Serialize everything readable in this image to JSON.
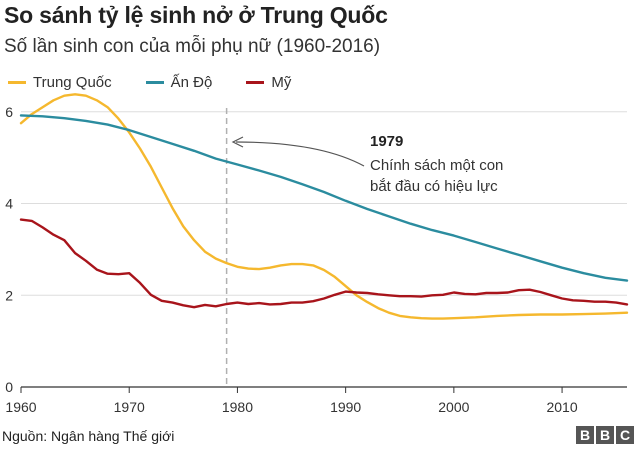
{
  "chart_data": {
    "type": "line",
    "title": "So sánh tỷ lệ sinh nở ở Trung Quốc",
    "subtitle": "Số lần sinh con của mỗi phụ nữ (1960-2016)",
    "xlabel": "",
    "ylabel": "",
    "xlim": [
      1960,
      2016
    ],
    "ylim": [
      0,
      6.3
    ],
    "x_ticks": [
      1960,
      1970,
      1980,
      1990,
      2000,
      2010
    ],
    "y_ticks": [
      0,
      2,
      4,
      6
    ],
    "grid": true,
    "legend_position": "top-left",
    "series": [
      {
        "name": "Trung Quốc",
        "color": "#f5b82e",
        "points": [
          [
            1960,
            5.75
          ],
          [
            1961,
            5.95
          ],
          [
            1962,
            6.1
          ],
          [
            1963,
            6.25
          ],
          [
            1964,
            6.35
          ],
          [
            1965,
            6.38
          ],
          [
            1966,
            6.35
          ],
          [
            1967,
            6.25
          ],
          [
            1968,
            6.1
          ],
          [
            1969,
            5.85
          ],
          [
            1970,
            5.55
          ],
          [
            1971,
            5.2
          ],
          [
            1972,
            4.8
          ],
          [
            1973,
            4.35
          ],
          [
            1974,
            3.9
          ],
          [
            1975,
            3.5
          ],
          [
            1976,
            3.2
          ],
          [
            1977,
            2.95
          ],
          [
            1978,
            2.8
          ],
          [
            1979,
            2.7
          ],
          [
            1980,
            2.62
          ],
          [
            1981,
            2.58
          ],
          [
            1982,
            2.57
          ],
          [
            1983,
            2.6
          ],
          [
            1984,
            2.65
          ],
          [
            1985,
            2.68
          ],
          [
            1986,
            2.68
          ],
          [
            1987,
            2.65
          ],
          [
            1988,
            2.55
          ],
          [
            1989,
            2.4
          ],
          [
            1990,
            2.2
          ],
          [
            1991,
            2.0
          ],
          [
            1992,
            1.85
          ],
          [
            1993,
            1.72
          ],
          [
            1994,
            1.62
          ],
          [
            1995,
            1.55
          ],
          [
            1996,
            1.52
          ],
          [
            1997,
            1.5
          ],
          [
            1998,
            1.49
          ],
          [
            1999,
            1.49
          ],
          [
            2000,
            1.5
          ],
          [
            2002,
            1.52
          ],
          [
            2004,
            1.55
          ],
          [
            2006,
            1.57
          ],
          [
            2008,
            1.58
          ],
          [
            2010,
            1.58
          ],
          [
            2012,
            1.59
          ],
          [
            2014,
            1.6
          ],
          [
            2016,
            1.62
          ]
        ]
      },
      {
        "name": "Ấn Độ",
        "color": "#2b8c9f",
        "points": [
          [
            1960,
            5.92
          ],
          [
            1962,
            5.9
          ],
          [
            1964,
            5.86
          ],
          [
            1966,
            5.8
          ],
          [
            1968,
            5.72
          ],
          [
            1970,
            5.6
          ],
          [
            1972,
            5.45
          ],
          [
            1974,
            5.3
          ],
          [
            1976,
            5.15
          ],
          [
            1978,
            4.98
          ],
          [
            1980,
            4.85
          ],
          [
            1982,
            4.72
          ],
          [
            1984,
            4.58
          ],
          [
            1986,
            4.42
          ],
          [
            1988,
            4.25
          ],
          [
            1990,
            4.06
          ],
          [
            1992,
            3.88
          ],
          [
            1994,
            3.72
          ],
          [
            1996,
            3.56
          ],
          [
            1998,
            3.42
          ],
          [
            2000,
            3.3
          ],
          [
            2002,
            3.16
          ],
          [
            2004,
            3.02
          ],
          [
            2006,
            2.88
          ],
          [
            2008,
            2.74
          ],
          [
            2010,
            2.6
          ],
          [
            2012,
            2.48
          ],
          [
            2014,
            2.38
          ],
          [
            2016,
            2.32
          ]
        ]
      },
      {
        "name": "Mỹ",
        "color": "#a8141b",
        "points": [
          [
            1960,
            3.65
          ],
          [
            1961,
            3.62
          ],
          [
            1962,
            3.48
          ],
          [
            1963,
            3.32
          ],
          [
            1964,
            3.2
          ],
          [
            1965,
            2.92
          ],
          [
            1966,
            2.75
          ],
          [
            1967,
            2.56
          ],
          [
            1968,
            2.47
          ],
          [
            1969,
            2.46
          ],
          [
            1970,
            2.48
          ],
          [
            1971,
            2.27
          ],
          [
            1972,
            2.01
          ],
          [
            1973,
            1.88
          ],
          [
            1974,
            1.84
          ],
          [
            1975,
            1.78
          ],
          [
            1976,
            1.74
          ],
          [
            1977,
            1.79
          ],
          [
            1978,
            1.76
          ],
          [
            1979,
            1.81
          ],
          [
            1980,
            1.84
          ],
          [
            1981,
            1.81
          ],
          [
            1982,
            1.83
          ],
          [
            1983,
            1.8
          ],
          [
            1984,
            1.81
          ],
          [
            1985,
            1.84
          ],
          [
            1986,
            1.84
          ],
          [
            1987,
            1.87
          ],
          [
            1988,
            1.93
          ],
          [
            1989,
            2.01
          ],
          [
            1990,
            2.08
          ],
          [
            1991,
            2.06
          ],
          [
            1992,
            2.05
          ],
          [
            1993,
            2.02
          ],
          [
            1994,
            2.0
          ],
          [
            1995,
            1.98
          ],
          [
            1996,
            1.98
          ],
          [
            1997,
            1.97
          ],
          [
            1998,
            2.0
          ],
          [
            1999,
            2.01
          ],
          [
            2000,
            2.06
          ],
          [
            2001,
            2.03
          ],
          [
            2002,
            2.02
          ],
          [
            2003,
            2.05
          ],
          [
            2004,
            2.05
          ],
          [
            2005,
            2.06
          ],
          [
            2006,
            2.11
          ],
          [
            2007,
            2.12
          ],
          [
            2008,
            2.07
          ],
          [
            2009,
            2.0
          ],
          [
            2010,
            1.93
          ],
          [
            2011,
            1.89
          ],
          [
            2012,
            1.88
          ],
          [
            2013,
            1.86
          ],
          [
            2014,
            1.86
          ],
          [
            2015,
            1.84
          ],
          [
            2016,
            1.8
          ]
        ]
      }
    ],
    "marker": {
      "x": 1979
    },
    "annotation": {
      "year": "1979",
      "text_line1": "Chính sách một con",
      "text_line2": "bắt đầu có hiệu lực"
    }
  },
  "source": "Nguồn: Ngân hàng Thế giới",
  "logo": [
    "B",
    "B",
    "C"
  ]
}
